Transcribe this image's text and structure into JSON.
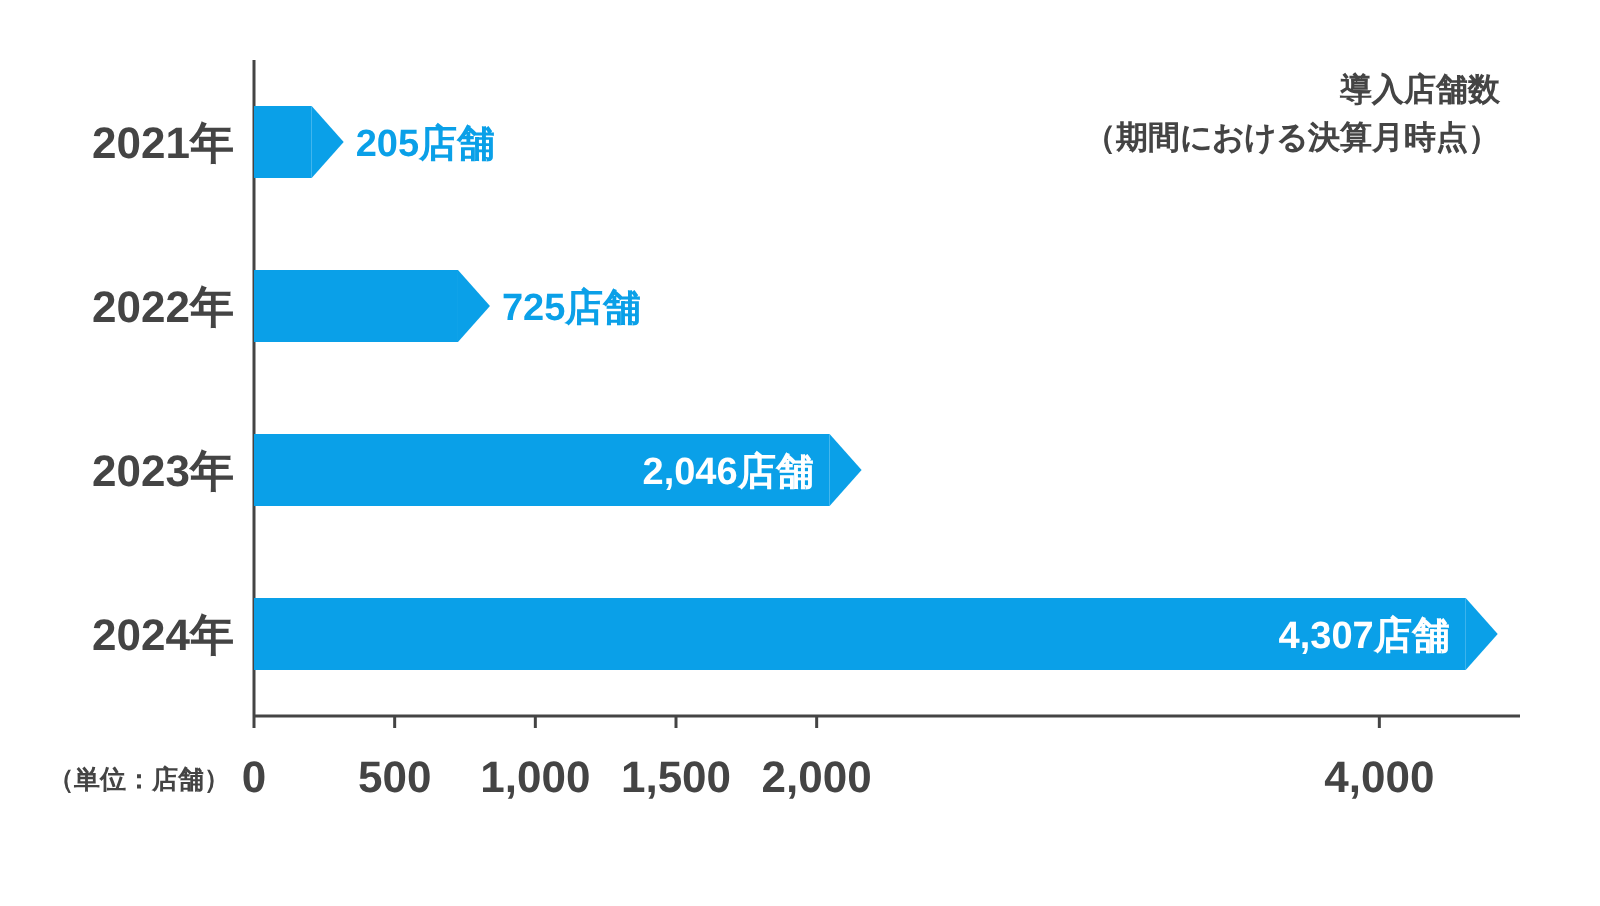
{
  "chart_data": {
    "type": "bar",
    "orientation": "horizontal",
    "title": "導入店舗数",
    "subtitle": "（期間における決算月時点）",
    "categories": [
      "2021年",
      "2022年",
      "2023年",
      "2024年"
    ],
    "values": [
      205,
      725,
      2046,
      4307
    ],
    "color": "#0aa0e8",
    "value_labels": [
      "205店舗",
      "725店舗",
      "2,046店舗",
      "4,307店舗"
    ],
    "xlim": [
      0,
      4500
    ],
    "xticks": [
      0,
      500,
      {
        "value": 1000,
        "label": "1,000"
      },
      {
        "value": 1500,
        "label": "1,500"
      },
      {
        "value": 2000,
        "label": "2,000"
      },
      {
        "value": 4000,
        "label": "4,000"
      }
    ],
    "annotations": [
      "（単位：店舗）"
    ],
    "grid": false
  }
}
